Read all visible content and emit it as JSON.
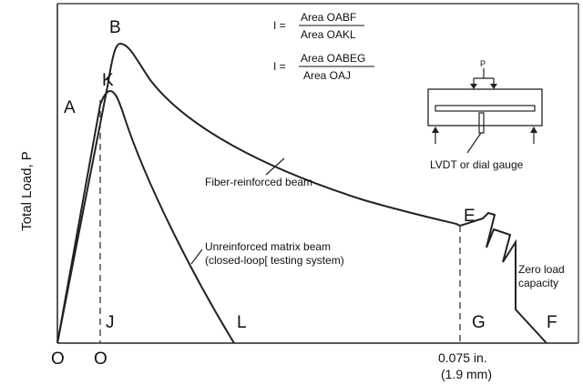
{
  "axis": {
    "y_label": "Total Load, P"
  },
  "points": {
    "A": "A",
    "B": "B",
    "K": "K",
    "E": "E",
    "O1": "O",
    "O2": "O",
    "J": "J",
    "L": "L",
    "G": "G",
    "F": "F"
  },
  "x_mark": {
    "line1": "0.075 in.",
    "line2": "(1.9 mm)"
  },
  "formulas": {
    "f1": {
      "lhs": "I =",
      "numerator": "Area OABF",
      "denominator": "Area OAKL"
    },
    "f2": {
      "lhs": "I =",
      "numerator": "Area OABEG",
      "denominator": "Area OAJ"
    }
  },
  "curves": {
    "fiber_label": "Fiber-reinforced beam",
    "matrix_label_1": "Unreinforced matrix beam",
    "matrix_label_2": "(closed-loop[ testing system)"
  },
  "zero_load": {
    "line1": "Zero load",
    "line2": "capacity"
  },
  "setup": {
    "load_label": "P",
    "gauge_label": "LVDT or dial gauge"
  }
}
